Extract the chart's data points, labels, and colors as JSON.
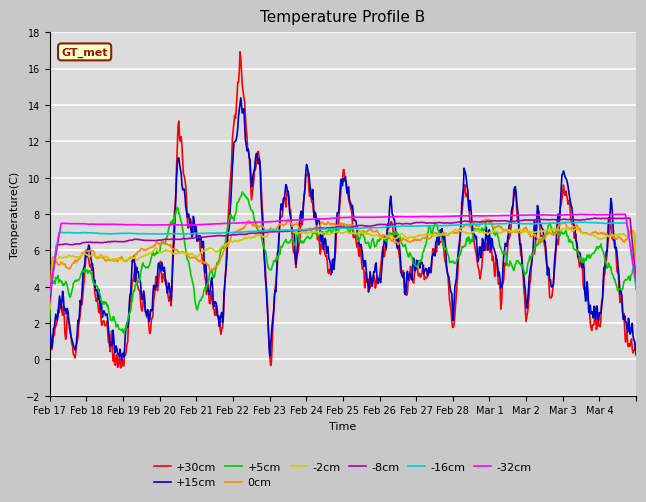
{
  "title": "Temperature Profile B",
  "xlabel": "Time",
  "ylabel": "Temperature(C)",
  "ylim": [
    -2,
    18
  ],
  "yticks": [
    -2,
    0,
    2,
    4,
    6,
    8,
    10,
    12,
    14,
    16,
    18
  ],
  "xtick_labels": [
    "Feb 17",
    "Feb 18",
    "Feb 19",
    "Feb 20",
    "Feb 21",
    "Feb 22",
    "Feb 23",
    "Feb 24",
    "Feb 25",
    "Feb 26",
    "Feb 27",
    "Feb 28",
    "Mar 1",
    "Mar 2",
    "Mar 3",
    "Mar 4"
  ],
  "series_labels": [
    "+30cm",
    "+15cm",
    "+5cm",
    "0cm",
    "-2cm",
    "-8cm",
    "-16cm",
    "-32cm"
  ],
  "series_colors": [
    "#ff0000",
    "#0000cc",
    "#00cc00",
    "#ff8800",
    "#cccc00",
    "#aa00aa",
    "#00cccc",
    "#ff00ff"
  ],
  "annotation_text": "GT_met",
  "bg_color": "#dcdcdc",
  "grid_color": "#ffffff",
  "title_fontsize": 11,
  "tick_fontsize": 7,
  "label_fontsize": 8,
  "legend_fontsize": 8
}
